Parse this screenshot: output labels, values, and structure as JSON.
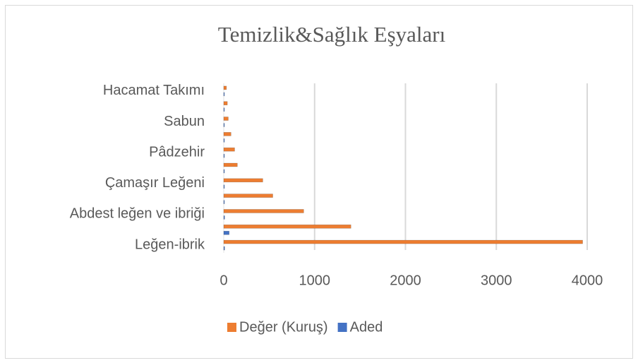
{
  "chart_data": {
    "type": "hbar",
    "title": "Temizlik&Sağlık Eşyaları",
    "categories": [
      "Leğen-ibrik",
      null,
      "Abdest leğen ve ibriği",
      null,
      "Çamaşır Leğeni",
      null,
      "Pâdzehir",
      null,
      "Sabun",
      null,
      "Hacamat Takımı"
    ],
    "series": [
      {
        "name": "Değer (Kuruş)",
        "color": "#ed7d31",
        "values": [
          3950,
          1400,
          880,
          540,
          430,
          150,
          120,
          80,
          50,
          40,
          30
        ]
      },
      {
        "name": "Aded",
        "color": "#4472c4",
        "values": [
          10,
          60,
          10,
          5,
          5,
          5,
          5,
          5,
          5,
          5,
          5
        ]
      }
    ],
    "xlim": [
      0,
      4000
    ],
    "xticks": [
      0,
      1000,
      2000,
      3000,
      4000
    ],
    "grid": true,
    "legend": "bottom"
  }
}
